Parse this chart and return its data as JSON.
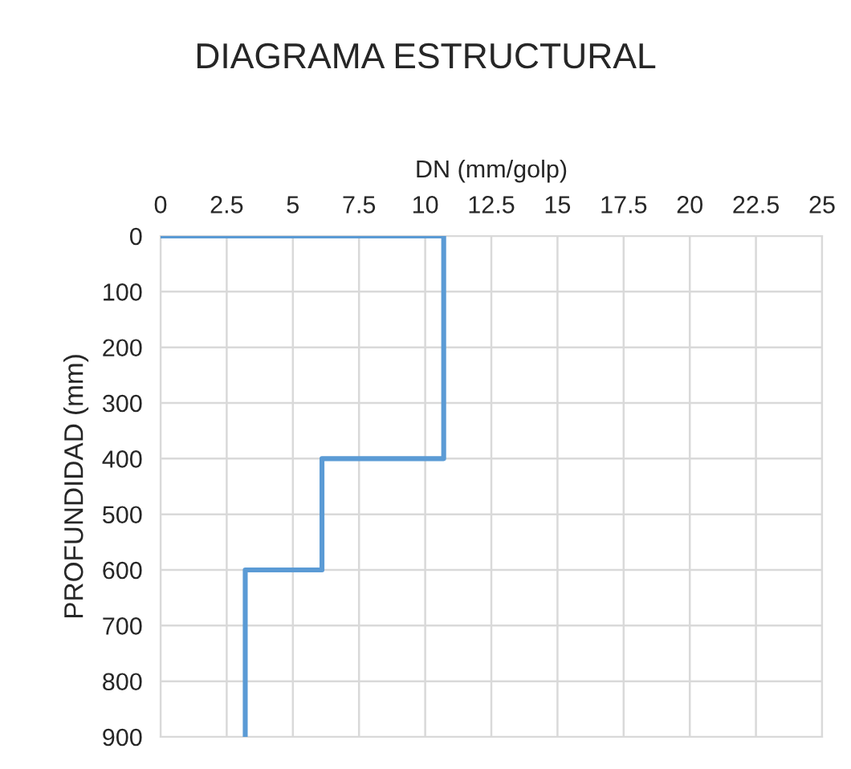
{
  "chart_data": {
    "type": "line",
    "title": "DIAGRAMA ESTRUCTURAL",
    "xlabel": "DN (mm/golp)",
    "ylabel": "PROFUNDIDAD (mm)",
    "series": [
      {
        "color": "#5b9bd5",
        "x": [
          0,
          10.7,
          10.7,
          6.1,
          6.1,
          3.2,
          3.2
        ],
        "values": [
          0,
          0,
          400,
          400,
          600,
          600,
          900
        ]
      }
    ],
    "xlim": [
      0,
      25
    ],
    "xticks": [
      0,
      2.5,
      5,
      7.5,
      10,
      12.5,
      15,
      17.5,
      20,
      22.5,
      25
    ],
    "ylim": [
      900,
      0
    ],
    "yticks": [
      0,
      100,
      200,
      300,
      400,
      500,
      600,
      700,
      800,
      900
    ],
    "grid": true,
    "line_style": "solid",
    "marker": "none"
  }
}
